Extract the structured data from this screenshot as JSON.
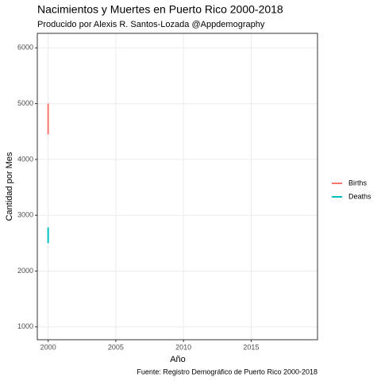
{
  "chart_data": {
    "type": "line",
    "title": "Nacimientos y Muertes en Puerto Rico 2000-2018",
    "subtitle": "Producido por Alexis R. Santos-Lozada @Appdemography",
    "caption": "Fuente: Registro Demográfico de Puerto Rico 2000-2018",
    "x_label": "Año",
    "y_label": "Cantidad por Mes",
    "x": [
      2000,
      2000,
      2000
    ],
    "series": [
      {
        "name": "Births",
        "color": "#F8766D",
        "values": [
          4980,
          4450,
          5000
        ]
      },
      {
        "name": "Deaths",
        "color": "#00BFC4",
        "values": [
          2780,
          2500,
          2760
        ]
      }
    ],
    "xlim": [
      1999.2,
      2019.9
    ],
    "xticks": [
      2000,
      2005,
      2010,
      2015
    ],
    "ylim": [
      770,
      6260
    ],
    "yticks": [
      1000,
      2000,
      3000,
      4000,
      5000,
      6000
    ],
    "grid": true,
    "legend": "right"
  }
}
